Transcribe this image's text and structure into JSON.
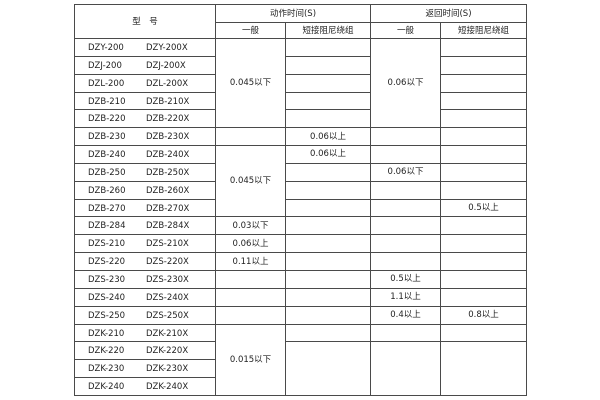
{
  "header": {
    "model": "型　号",
    "action_time": "动作时间(S)",
    "return_time": "返回时间(S)",
    "general": "一般",
    "short_damping": "短接阻尼绕组"
  },
  "rows": [
    {
      "model_a": "DZY-200",
      "model_b": "DZY-200X"
    },
    {
      "model_a": "DZJ-200",
      "model_b": "DZJ-200X"
    },
    {
      "model_a": "DZL-200",
      "model_b": "DZL-200X"
    },
    {
      "model_a": "DZB-210",
      "model_b": "DZB-210X"
    },
    {
      "model_a": "DZB-220",
      "model_b": "DZB-220X"
    },
    {
      "model_a": "DZB-230",
      "model_b": "DZB-230X"
    },
    {
      "model_a": "DZB-240",
      "model_b": "DZB-240X"
    },
    {
      "model_a": "DZB-250",
      "model_b": "DZB-250X"
    },
    {
      "model_a": "DZB-260",
      "model_b": "DZB-260X"
    },
    {
      "model_a": "DZB-270",
      "model_b": "DZB-270X"
    },
    {
      "model_a": "DZB-284",
      "model_b": "DZB-284X"
    },
    {
      "model_a": "DZS-210",
      "model_b": "DZS-210X"
    },
    {
      "model_a": "DZS-220",
      "model_b": "DZS-220X"
    },
    {
      "model_a": "DZS-230",
      "model_b": "DZS-230X"
    },
    {
      "model_a": "DZS-240",
      "model_b": "DZS-240X"
    },
    {
      "model_a": "DZS-250",
      "model_b": "DZS-250X"
    },
    {
      "model_a": "DZK-210",
      "model_b": "DZK-210X"
    },
    {
      "model_a": "DZK-220",
      "model_b": "DZK-220X"
    },
    {
      "model_a": "DZK-230",
      "model_b": "DZK-230X"
    },
    {
      "model_a": "DZK-240",
      "model_b": "DZK-240X"
    }
  ],
  "columns": {
    "action_general": [
      "0.045以下",
      "",
      "0.045以下",
      "0.03以下",
      "0.06以上",
      "0.11以上",
      "",
      "",
      "",
      "0.015以下"
    ],
    "action_short": [
      "",
      "",
      "",
      "",
      "",
      "0.06以上",
      "0.06以上",
      "",
      "",
      "",
      "",
      "",
      "",
      "",
      "",
      "",
      "",
      ""
    ],
    "return_general": [
      "0.06以下",
      "",
      "",
      "0.06以下",
      "",
      "",
      "",
      "",
      "",
      "0.5以上",
      "1.1以上",
      "0.4以上",
      "",
      ""
    ],
    "return_short": [
      "",
      "",
      "",
      "",
      "",
      "",
      "",
      "",
      "",
      "0.5以上",
      "",
      "",
      "",
      "",
      "",
      "0.8以上",
      "",
      ""
    ]
  }
}
